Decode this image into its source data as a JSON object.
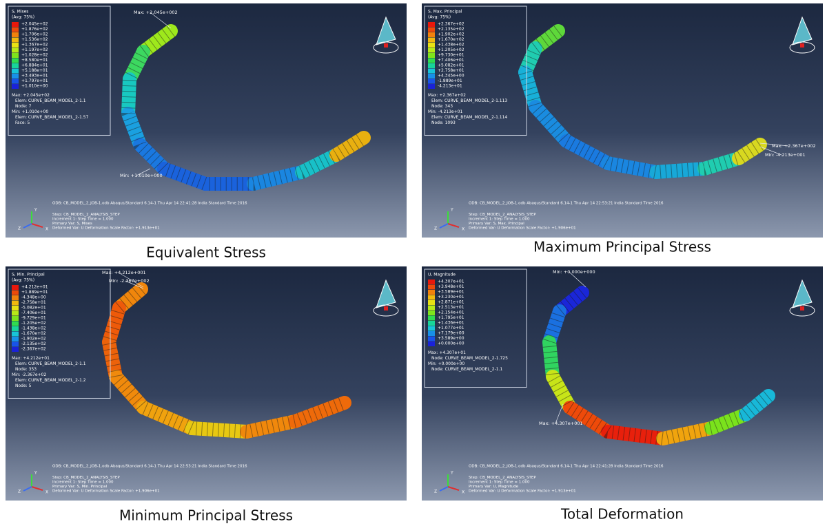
{
  "panels": [
    {
      "caption": "Equivalent Stress",
      "legend_title": [
        "S, Mises",
        "(Avg: 75%)"
      ],
      "legend_values": [
        "+2.045e+02",
        "+1.876e+02",
        "+1.706e+02",
        "+1.536e+02",
        "+1.367e+02",
        "+1.197e+02",
        "+1.028e+02",
        "+8.580e+01",
        "+6.884e+01",
        "+5.188e+01",
        "+3.493e+01",
        "+1.797e+01",
        "+1.010e+00"
      ],
      "info": [
        "Max: +2.045e+02",
        "Elem: CURVE_BEAM_MODEL_2-1.1",
        "Node: 7",
        "Min: +1.010e+00",
        "Elem: CURVE_BEAM_MODEL_2-1.57",
        "Face: 5"
      ],
      "labels": [
        "Max: +2.045e+002",
        "Min: +1.010e+000"
      ],
      "footer": [
        "ODB: CB_MODEL_2_JOB-1.odb    Abaqus/Standard 6.14-1    Thu Apr 14 22:41:28 India Standard Time 2016",
        "Step: CB_MODEL_2_ANALYSIS_STEP",
        "Increment    1: Step Time =    1.000",
        "Primary Var: S, Mises",
        "Deformed Var: U   Deformation Scale Factor: +1.913e+01"
      ]
    },
    {
      "caption": "Maximum Principal Stress",
      "legend_title": [
        "S, Max. Principal",
        "(Avg: 75%)"
      ],
      "legend_values": [
        "+2.367e+02",
        "+2.135e+02",
        "+1.902e+02",
        "+1.670e+02",
        "+1.438e+02",
        "+1.205e+02",
        "+9.730e+01",
        "+7.406e+01",
        "+5.082e+01",
        "+2.758e+01",
        "+4.345e+00",
        "-1.889e+01",
        "-4.213e+01"
      ],
      "info": [
        "Max: +2.367e+02",
        "Elem: CURVE_BEAM_MODEL_2-1.113",
        "Node: 343",
        "Min: -4.213e+01",
        "Elem: CURVE_BEAM_MODEL_2-1.114",
        "Node: 1093"
      ],
      "labels": [
        "Max: +2.367e+002",
        "Min: -4.213e+001"
      ],
      "footer": [
        "ODB: CB_MODEL_2_JOB-1.odb    Abaqus/Standard 6.14-1    Thu Apr 14 22:53:21 India Standard Time 2016",
        "Step: CB_MODEL_2_ANALYSIS_STEP",
        "Increment    1: Step Time =    1.000",
        "Primary Var: S, Max. Principal",
        "Deformed Var: U   Deformation Scale Factor: +1.906e+01"
      ]
    },
    {
      "caption": "Minimum Principal Stress",
      "legend_title": [
        "S, Min. Principal",
        "(Avg: 75%)"
      ],
      "legend_values": [
        "+4.212e+01",
        "+1.889e+01",
        "-4.348e+00",
        "-2.758e+01",
        "-5.082e+01",
        "-7.406e+01",
        "-9.729e+01",
        "-1.205e+02",
        "-1.438e+02",
        "-1.670e+02",
        "-1.902e+02",
        "-2.135e+02",
        "-2.367e+02"
      ],
      "info": [
        "Max: +4.212e+01",
        "Elem: CURVE_BEAM_MODEL_2-1.1",
        "Node: 353",
        "Min: -2.367e+02",
        "Elem: CURVE_BEAM_MODEL_2-1.2",
        "Node: 5"
      ],
      "labels": [
        "Max: +4.212e+001",
        "Min: -2.367e+002"
      ],
      "footer": [
        "ODB: CB_MODEL_2_JOB-1.odb    Abaqus/Standard 6.14-1    Thu Apr 14 22:53:21 India Standard Time 2016",
        "Step: CB_MODEL_2_ANALYSIS_STEP",
        "Increment    1: Step Time =    1.000",
        "Primary Var: S, Min. Principal",
        "Deformed Var: U   Deformation Scale Factor: +1.906e+01"
      ]
    },
    {
      "caption": "Total Deformation",
      "legend_title": [
        "U, Magnitude"
      ],
      "legend_values": [
        "+4.307e+01",
        "+3.948e+01",
        "+3.589e+01",
        "+3.230e+01",
        "+2.871e+01",
        "+2.513e+01",
        "+2.154e+01",
        "+1.795e+01",
        "+1.436e+01",
        "+1.077e+01",
        "+7.179e+00",
        "+3.589e+00",
        "+0.000e+00"
      ],
      "info": [
        "Max: +4.307e+01",
        "Node: CURVE_BEAM_MODEL_2-1.725",
        "Min: +0.000e+00",
        "Node: CURVE_BEAM_MODEL_2-1.1"
      ],
      "labels": [
        "Min: +0.000e+000",
        "Max: +4.307e+001"
      ],
      "footer": [
        "ODB: CB_MODEL_2_JOB-1.odb    Abaqus/Standard 6.14-1    Thu Apr 14 22:41:28 India Standard Time 2016",
        "Step: CB_MODEL_2_ANALYSIS_STEP",
        "Increment    1: Step Time =    1.000",
        "Primary Var: U, Magnitude",
        "Deformed Var: U   Deformation Scale Factor: +1.913e+01"
      ]
    }
  ],
  "triad": [
    "Y",
    "Z",
    "X"
  ]
}
